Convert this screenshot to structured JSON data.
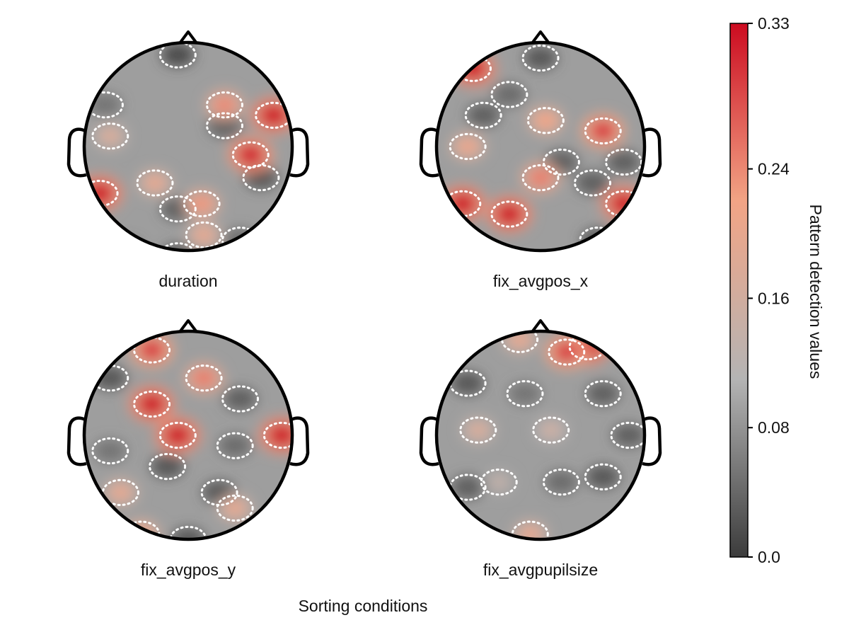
{
  "chart_data": {
    "type": "heatmap",
    "subtype": "topoplot",
    "xlabel": "Sorting conditions",
    "panels": [
      {
        "label": "duration",
        "hotspots": [
          {
            "x": 0.82,
            "y": 0.3,
            "v": 0.33
          },
          {
            "x": 0.6,
            "y": -0.08,
            "v": 0.32
          },
          {
            "x": -0.85,
            "y": -0.45,
            "v": 0.33
          },
          {
            "x": 0.13,
            "y": -0.55,
            "v": 0.23
          },
          {
            "x": -0.32,
            "y": -0.35,
            "v": 0.2
          },
          {
            "x": 0.35,
            "y": 0.4,
            "v": 0.24
          },
          {
            "x": -0.75,
            "y": 0.1,
            "v": 0.18
          },
          {
            "x": 0.15,
            "y": -0.85,
            "v": 0.2
          }
        ],
        "lows": [
          {
            "x": -0.1,
            "y": 0.88,
            "v": 0.01
          },
          {
            "x": -0.1,
            "y": -1.05,
            "v": 0.02
          },
          {
            "x": -0.6,
            "y": -1.0,
            "v": 0.03
          },
          {
            "x": 0.7,
            "y": -0.3,
            "v": 0.02
          },
          {
            "x": -0.1,
            "y": -0.6,
            "v": 0.03
          },
          {
            "x": 0.35,
            "y": 0.2,
            "v": 0.03
          },
          {
            "x": -0.8,
            "y": 0.4,
            "v": 0.05
          },
          {
            "x": 0.5,
            "y": -0.9,
            "v": 0.04
          }
        ]
      },
      {
        "label": "fix_avgpos_x",
        "hotspots": [
          {
            "x": -0.65,
            "y": 0.75,
            "v": 0.33
          },
          {
            "x": 0.6,
            "y": 0.15,
            "v": 0.3
          },
          {
            "x": -0.75,
            "y": -0.55,
            "v": 0.33
          },
          {
            "x": -0.3,
            "y": -0.65,
            "v": 0.33
          },
          {
            "x": 0.8,
            "y": -0.55,
            "v": 0.33
          },
          {
            "x": 0.0,
            "y": -0.3,
            "v": 0.25
          },
          {
            "x": -0.7,
            "y": 0.0,
            "v": 0.21
          },
          {
            "x": 0.05,
            "y": 0.25,
            "v": 0.22
          }
        ],
        "lows": [
          {
            "x": 0.0,
            "y": 0.85,
            "v": 0.02
          },
          {
            "x": -0.55,
            "y": 0.3,
            "v": 0.03
          },
          {
            "x": 0.2,
            "y": -0.15,
            "v": 0.03
          },
          {
            "x": 0.5,
            "y": -0.35,
            "v": 0.03
          },
          {
            "x": 0.55,
            "y": -0.9,
            "v": 0.02
          },
          {
            "x": 0.8,
            "y": -0.15,
            "v": 0.03
          },
          {
            "x": -0.3,
            "y": 0.5,
            "v": 0.04
          }
        ]
      },
      {
        "label": "fix_avgpos_y",
        "hotspots": [
          {
            "x": -0.35,
            "y": 0.82,
            "v": 0.3
          },
          {
            "x": -0.35,
            "y": 0.3,
            "v": 0.33
          },
          {
            "x": -0.1,
            "y": 0.0,
            "v": 0.33
          },
          {
            "x": 0.9,
            "y": 0.0,
            "v": 0.33
          },
          {
            "x": 0.15,
            "y": 0.55,
            "v": 0.25
          },
          {
            "x": -0.65,
            "y": -0.55,
            "v": 0.2
          },
          {
            "x": 0.45,
            "y": -0.7,
            "v": 0.2
          },
          {
            "x": -0.45,
            "y": -0.95,
            "v": 0.22
          }
        ],
        "lows": [
          {
            "x": -0.75,
            "y": 0.55,
            "v": 0.02
          },
          {
            "x": 0.0,
            "y": -1.0,
            "v": 0.02
          },
          {
            "x": 0.3,
            "y": -0.55,
            "v": 0.02
          },
          {
            "x": -0.2,
            "y": -0.3,
            "v": 0.02
          },
          {
            "x": 0.45,
            "y": -0.1,
            "v": 0.04
          },
          {
            "x": 0.5,
            "y": 0.35,
            "v": 0.03
          },
          {
            "x": -0.75,
            "y": -0.15,
            "v": 0.05
          }
        ]
      },
      {
        "label": "fix_avgpupilsize",
        "hotspots": [
          {
            "x": 0.45,
            "y": 0.85,
            "v": 0.33
          },
          {
            "x": 0.25,
            "y": 0.8,
            "v": 0.3
          },
          {
            "x": -0.2,
            "y": 0.92,
            "v": 0.2
          },
          {
            "x": -0.6,
            "y": 0.05,
            "v": 0.18
          },
          {
            "x": 0.1,
            "y": 0.05,
            "v": 0.16
          },
          {
            "x": -0.1,
            "y": -0.95,
            "v": 0.2
          },
          {
            "x": -0.4,
            "y": -0.45,
            "v": 0.14
          }
        ],
        "lows": [
          {
            "x": -0.7,
            "y": 0.5,
            "v": 0.02
          },
          {
            "x": 0.6,
            "y": 0.4,
            "v": 0.03
          },
          {
            "x": 0.6,
            "y": -0.4,
            "v": 0.02
          },
          {
            "x": -0.7,
            "y": -0.5,
            "v": 0.03
          },
          {
            "x": 0.2,
            "y": -0.45,
            "v": 0.04
          },
          {
            "x": 0.85,
            "y": 0.0,
            "v": 0.03
          },
          {
            "x": -0.15,
            "y": 0.4,
            "v": 0.05
          }
        ]
      }
    ],
    "colorbar": {
      "label": "Pattern detection values",
      "range": [
        0.0,
        0.33
      ],
      "ticks": [
        "0.0",
        "0.08",
        "0.16",
        "0.24",
        "0.33"
      ],
      "colors": [
        "#3c3c3c",
        "#b4b4b4",
        "#f2a485",
        "#cc0b20"
      ]
    }
  }
}
